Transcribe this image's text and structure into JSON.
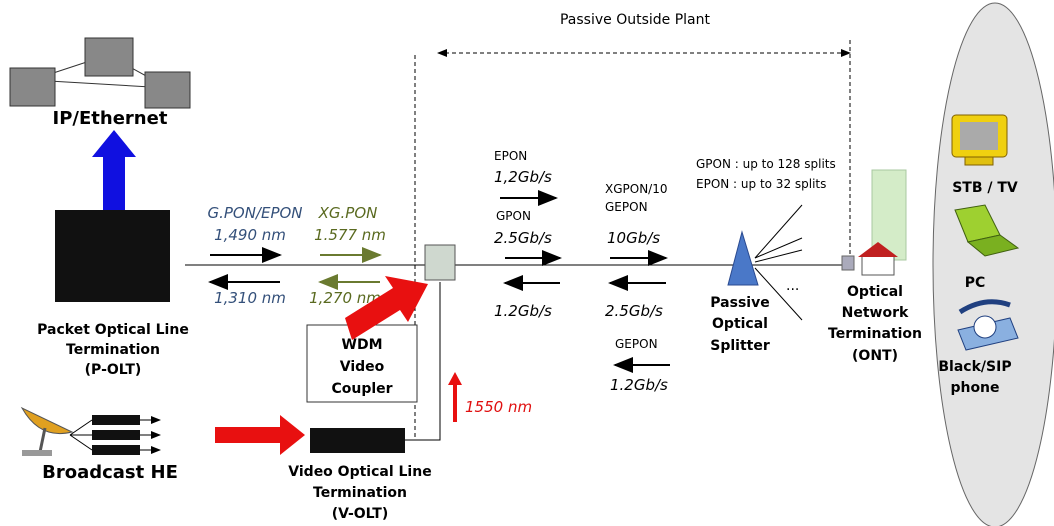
{
  "header": {
    "title": "Passive Outside Plant"
  },
  "nodes": {
    "ip": {
      "label": "IP/Ethernet"
    },
    "polt": {
      "label": [
        "Packet Optical Line",
        "Termination",
        "(P-OLT)"
      ]
    },
    "coupler": {
      "label": [
        "WDM",
        "Video",
        "Coupler"
      ]
    },
    "video_wavelength": "1550 nm",
    "broadcast": {
      "label": "Broadcast HE"
    },
    "volt": {
      "label": [
        "Video Optical Line",
        "Termination",
        "(V-OLT)"
      ]
    },
    "splitter": {
      "label": [
        "Passive",
        "Optical",
        "Splitter"
      ],
      "more": "...",
      "splits": [
        "GPON : up to 128 splits",
        "EPON : up to 32 splits"
      ]
    },
    "ont": {
      "label": [
        "Optical",
        "Network",
        "Termination",
        "(ONT)"
      ]
    },
    "devices": [
      {
        "label": [
          "STB / TV"
        ]
      },
      {
        "label": [
          "PC"
        ]
      },
      {
        "label": [
          "Black/SIP",
          "phone"
        ]
      }
    ]
  },
  "links": {
    "gpon_epon": {
      "name": "G.PON/EPON",
      "down": "1,490 nm",
      "up": "1,310 nm"
    },
    "xgpon": {
      "name": "XG.PON",
      "down": "1.577 nm",
      "up": "1,270 nm"
    },
    "pon_rates": {
      "epon": "EPON",
      "epon_down": "1,2Gb/s",
      "gpon": "GPON",
      "gpon_down": "2.5Gb/s",
      "up": "1.2Gb/s"
    },
    "ng_rates": {
      "name": [
        "XGPON/10",
        "GEPON"
      ],
      "down": "10Gb/s",
      "up": "2.5Gb/s",
      "gepon": "GEPON",
      "gepon_up": "1.2Gb/s"
    }
  }
}
